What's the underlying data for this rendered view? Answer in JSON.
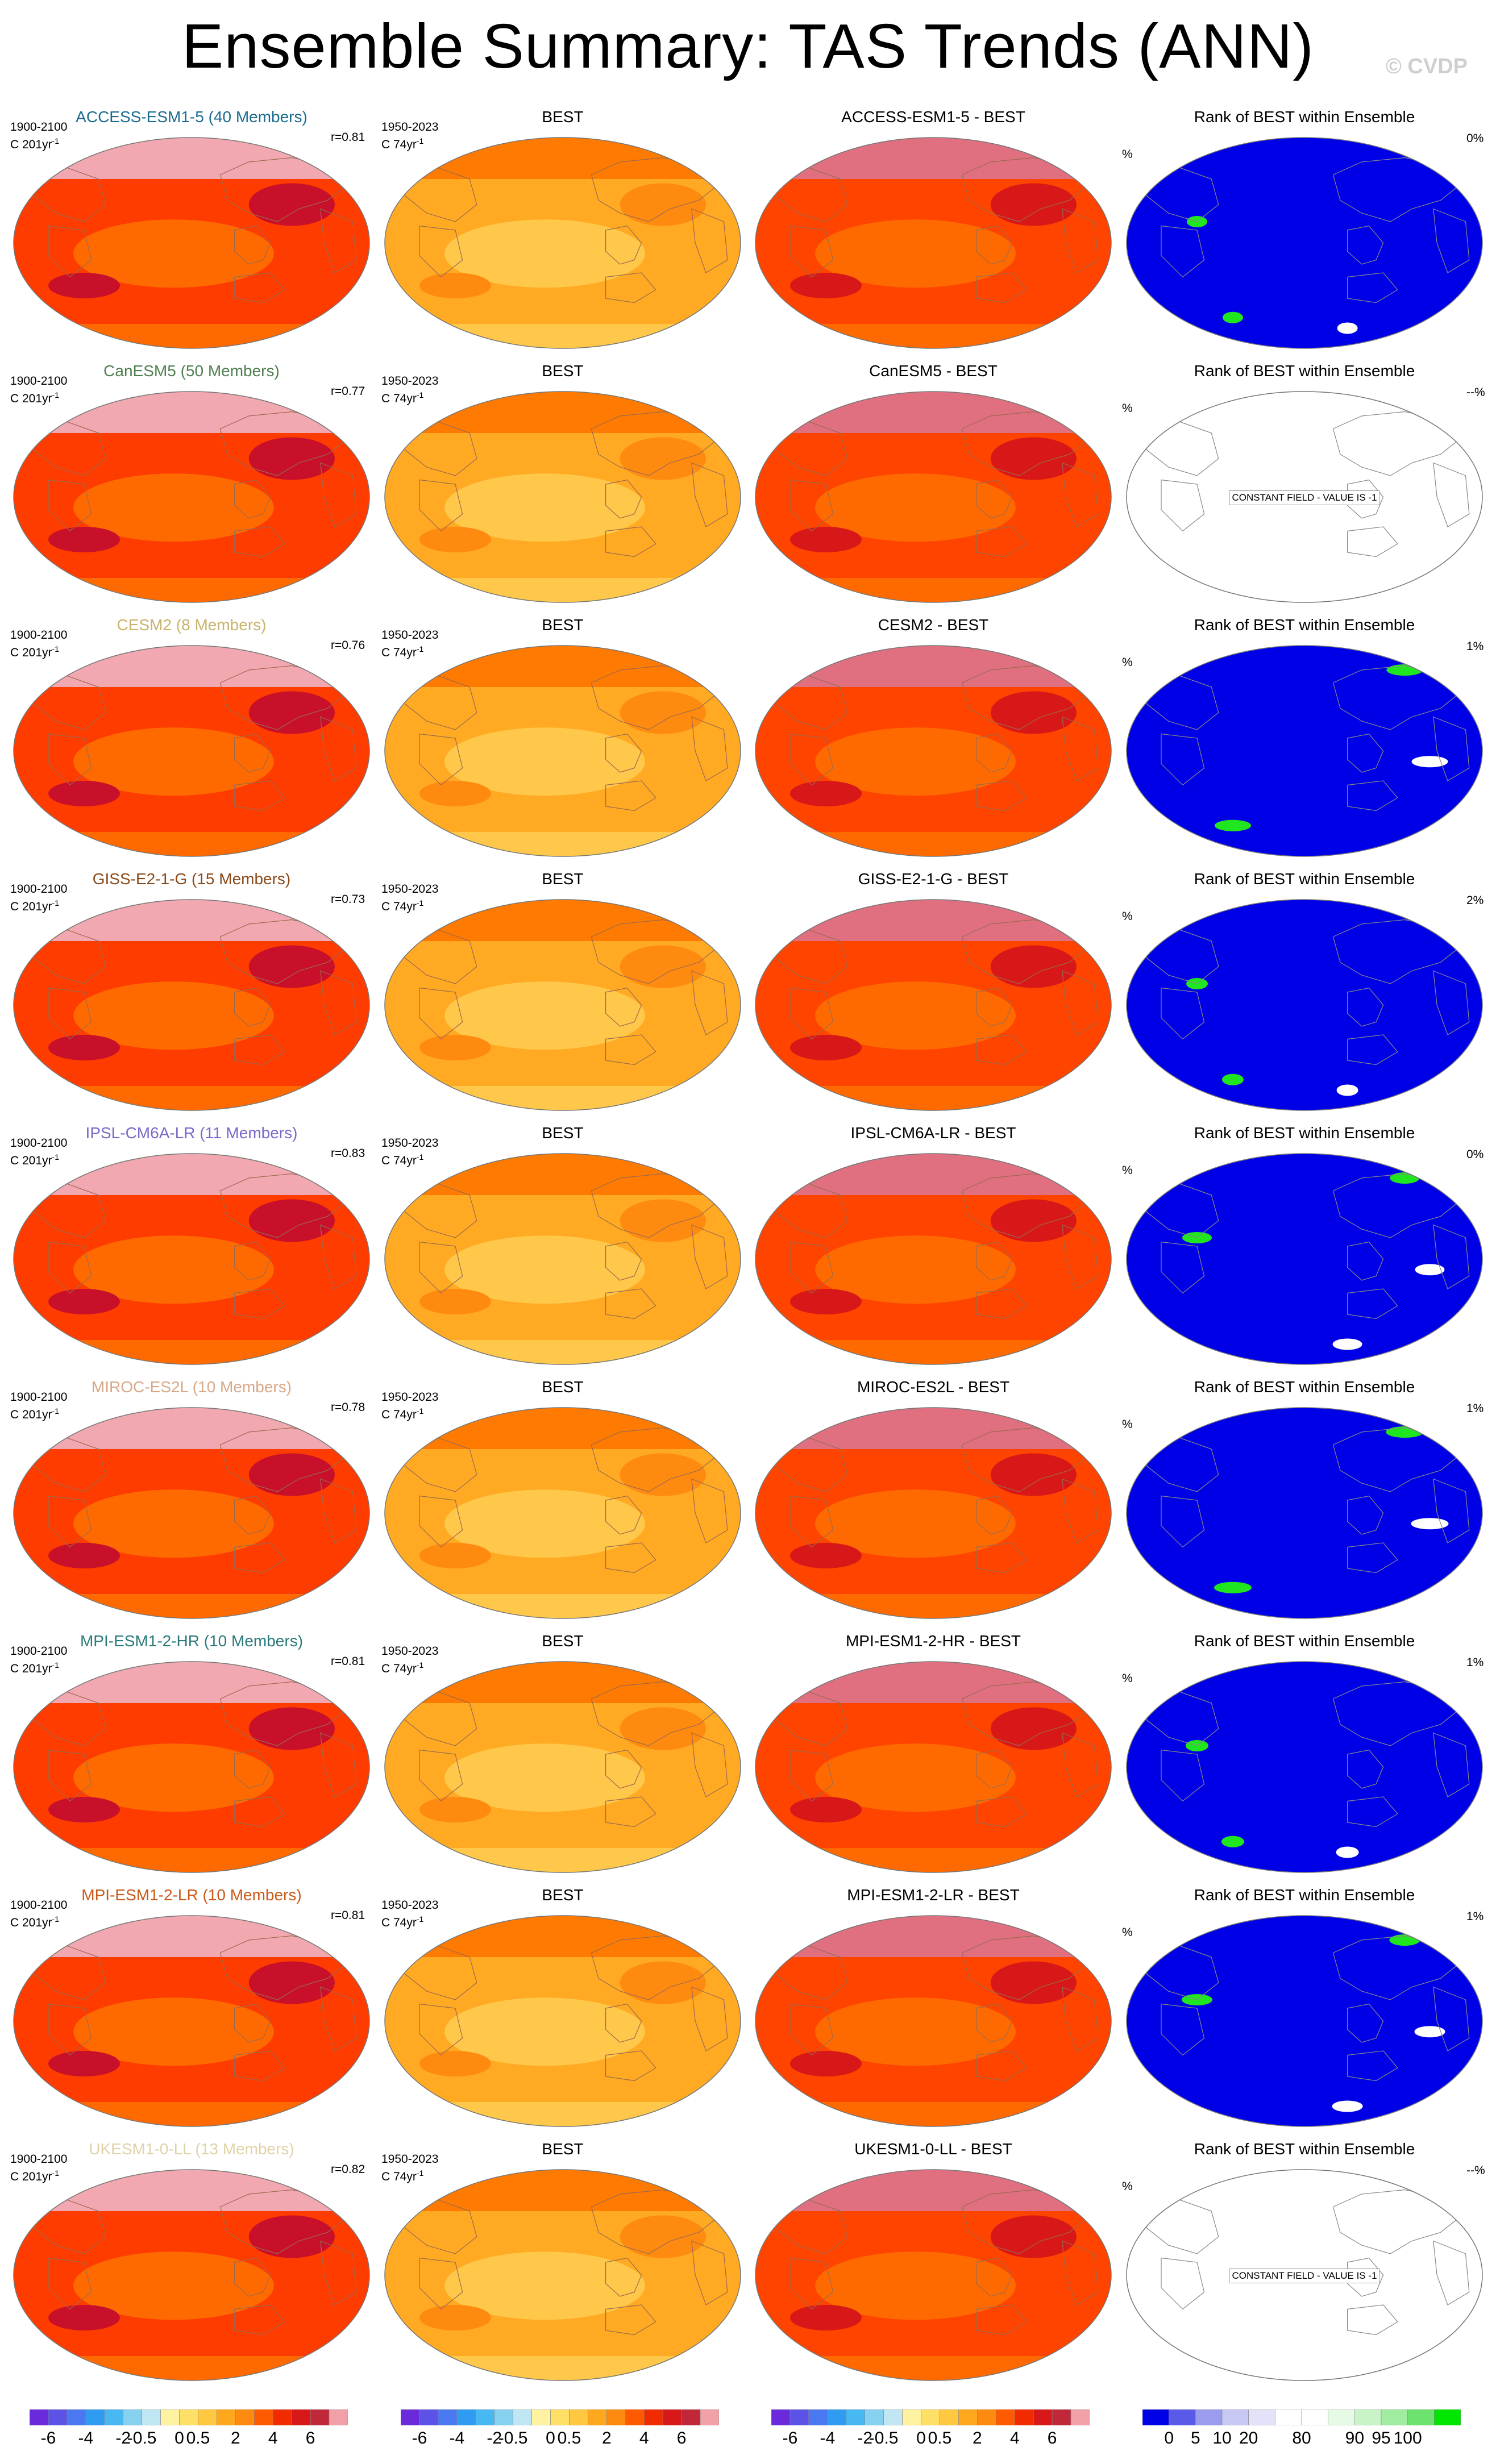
{
  "title": "Ensemble Summary: TAS Trends (ANN)",
  "credit": "© CVDP",
  "chart_data": {
    "type": "heatmap",
    "description_rows": 9,
    "columns": [
      {
        "kind": "model_trend",
        "period": "1900-2100",
        "units": "C 201yr",
        "units_sup": "-1"
      },
      {
        "kind": "observed_trend",
        "title": "BEST",
        "period": "1950-2023",
        "units": "C 74yr",
        "units_sup": "-1"
      },
      {
        "kind": "difference",
        "title_suffix": " - BEST"
      },
      {
        "kind": "rank",
        "title": "Rank of BEST within Ensemble",
        "units": "%"
      }
    ],
    "rows": [
      {
        "model": "ACCESS-ESM1-5",
        "members": "40 Members",
        "label": "ACCESS-ESM1-5 (40 Members)",
        "label_color": "#1b6b8f",
        "r": "r=0.81",
        "rank_pct": "0%",
        "diff_title": "ACCESS-ESM1-5 - BEST",
        "constant_field": false
      },
      {
        "model": "CanESM5",
        "members": "50 Members",
        "label": "CanESM5 (50 Members)",
        "label_color": "#4f7f4f",
        "r": "r=0.77",
        "rank_pct": "--%",
        "diff_title": "CanESM5 - BEST",
        "constant_field": true
      },
      {
        "model": "CESM2",
        "members": "8 Members",
        "label": "CESM2 (8 Members)",
        "label_color": "#c9b26a",
        "r": "r=0.76",
        "rank_pct": "1%",
        "diff_title": "CESM2 - BEST",
        "constant_field": false
      },
      {
        "model": "GISS-E2-1-G",
        "members": "15 Members",
        "label": "GISS-E2-1-G (15 Members)",
        "label_color": "#8a4a1a",
        "r": "r=0.73",
        "rank_pct": "2%",
        "diff_title": "GISS-E2-1-G - BEST",
        "constant_field": false
      },
      {
        "model": "IPSL-CM6A-LR",
        "members": "11 Members",
        "label": "IPSL-CM6A-LR (11 Members)",
        "label_color": "#7b68c8",
        "r": "r=0.83",
        "rank_pct": "0%",
        "diff_title": "IPSL-CM6A-LR - BEST",
        "constant_field": false
      },
      {
        "model": "MIROC-ES2L",
        "members": "10 Members",
        "label": "MIROC-ES2L (10 Members)",
        "label_color": "#d8a888",
        "r": "r=0.78",
        "rank_pct": "1%",
        "diff_title": "MIROC-ES2L - BEST",
        "constant_field": false
      },
      {
        "model": "MPI-ESM1-2-HR",
        "members": "10 Members",
        "label": "MPI-ESM1-2-HR (10 Members)",
        "label_color": "#2a7a7a",
        "r": "r=0.81",
        "rank_pct": "1%",
        "diff_title": "MPI-ESM1-2-HR - BEST",
        "constant_field": false
      },
      {
        "model": "MPI-ESM1-2-LR",
        "members": "10 Members",
        "label": "MPI-ESM1-2-LR (10 Members)",
        "label_color": "#c85a1a",
        "r": "r=0.81",
        "rank_pct": "1%",
        "diff_title": "MPI-ESM1-2-LR - BEST",
        "constant_field": false
      },
      {
        "model": "UKESM1-0-LL",
        "members": "13 Members",
        "label": "UKESM1-0-LL (13 Members)",
        "label_color": "#e0d2a8",
        "r": "r=0.82",
        "rank_pct": "--%",
        "diff_title": "UKESM1-0-LL - BEST",
        "constant_field": true
      }
    ],
    "constant_field_text": "CONSTANT FIELD - VALUE IS -1",
    "trend_colorbar": {
      "colors": [
        "#6a2adc",
        "#5c52e8",
        "#4a78f0",
        "#2f9cf2",
        "#48b8f2",
        "#86d0f0",
        "#bfe6f2",
        "#fff2a0",
        "#ffe066",
        "#ffc840",
        "#ffa81e",
        "#ff8a10",
        "#ff5a00",
        "#f22a00",
        "#d81818",
        "#c0283a",
        "#f2a0a8"
      ],
      "tick_labels": [
        "-6",
        "-4",
        "-2",
        "-0.5",
        "0",
        "0.5",
        "2",
        "4",
        "6"
      ]
    },
    "rank_colorbar": {
      "colors": [
        "#0000e6",
        "#5a5ae8",
        "#9c9cef",
        "#c8c8f4",
        "#e2e2f8",
        "#ffffff",
        "#ffffff",
        "#e6fae6",
        "#c8f4c8",
        "#a0eca0",
        "#6ee26e",
        "#00e600"
      ],
      "tick_labels": [
        "0",
        "5",
        "10",
        "20",
        "80",
        "90",
        "95",
        "100"
      ]
    }
  }
}
